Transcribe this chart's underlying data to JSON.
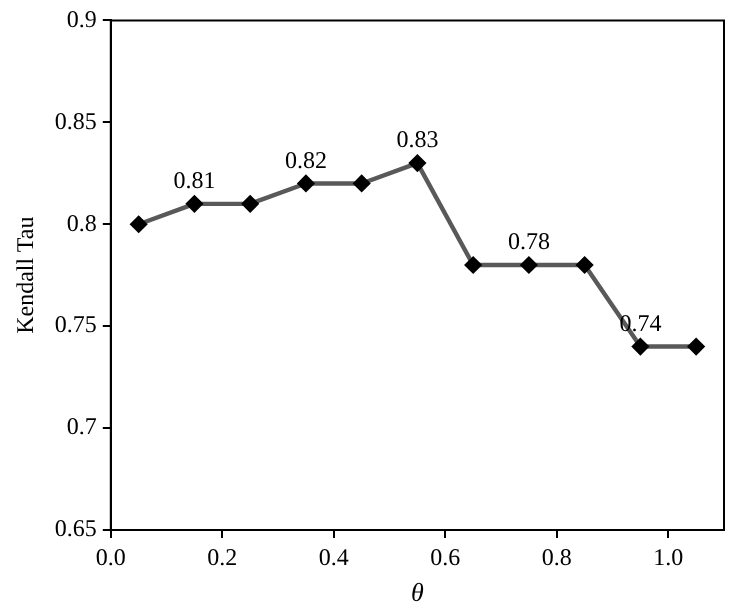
{
  "chart_data": {
    "type": "line",
    "xlabel": "θ",
    "ylabel": "Kendall Tau",
    "x": [
      0.05,
      0.15,
      0.25,
      0.35,
      0.45,
      0.55,
      0.65,
      0.75,
      0.85,
      0.95,
      1.05
    ],
    "series": [
      {
        "color": "#595959",
        "values": [
          0.8,
          0.81,
          0.81,
          0.82,
          0.82,
          0.83,
          0.78,
          0.78,
          0.78,
          0.74,
          0.74
        ],
        "value_labels": [
          null,
          "0.81",
          null,
          "0.82",
          null,
          "0.83",
          null,
          "0.78",
          null,
          "0.74",
          null
        ]
      }
    ],
    "xlim": [
      0,
      1.1
    ],
    "xticks": [
      {
        "value": 0,
        "label": "0.0"
      },
      {
        "value": 0.2,
        "label": "0.2"
      },
      {
        "value": 0.4,
        "label": "0.4"
      },
      {
        "value": 0.6,
        "label": "0.6"
      },
      {
        "value": 0.8,
        "label": "0.8"
      },
      {
        "value": 1,
        "label": "1.0"
      }
    ],
    "ylim": [
      0.65,
      0.9
    ],
    "yticks": [
      0.65,
      0.7,
      0.75,
      0.8,
      0.85,
      0.9
    ],
    "marker": "diamond",
    "line_style": "solid",
    "grid": false,
    "legend": false
  }
}
